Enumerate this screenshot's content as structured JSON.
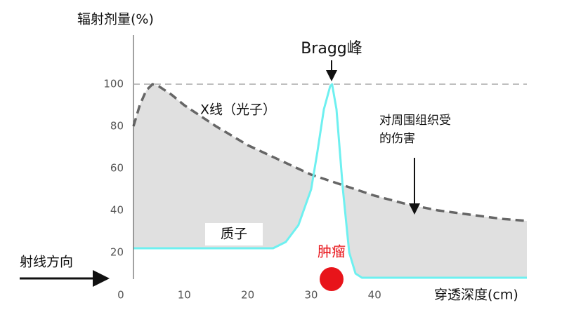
{
  "chart_data": {
    "type": "line",
    "y_label": "辐射剂量(%)",
    "x_label": "穿透深度(cm)",
    "xlim": [
      2,
      64
    ],
    "ylim": [
      0,
      125
    ],
    "xticks": [
      0,
      10,
      20,
      30,
      40
    ],
    "yticks": [
      20,
      40,
      60,
      80,
      100
    ],
    "reference_line": 100,
    "series": [
      {
        "name": "X线（光子）",
        "color": "#666666",
        "fill": "#e0e0e0",
        "dashed": true,
        "x": [
          2,
          3,
          4,
          5,
          6,
          8,
          10,
          15,
          20,
          25,
          30,
          35,
          40,
          45,
          50,
          55,
          60,
          64
        ],
        "values": [
          80,
          90,
          97,
          100,
          99,
          95,
          90,
          80,
          71,
          64,
          57,
          52,
          47,
          43,
          40,
          38,
          36,
          35
        ]
      },
      {
        "name": "质子",
        "color": "#6ef0f0",
        "fill": "#ffffff",
        "dashed": false,
        "x": [
          2,
          24,
          26,
          28,
          30,
          31,
          32,
          33,
          33.3,
          34,
          35,
          36,
          37,
          38,
          64
        ],
        "values": [
          22,
          22,
          25,
          33,
          50,
          68,
          88,
          99,
          100,
          88,
          50,
          20,
          10,
          8,
          8
        ]
      }
    ],
    "annotations": {
      "bragg": "Bragg峰",
      "harm": [
        "对周围组织受",
        "的伤害"
      ],
      "tumor": "肿瘤",
      "direction": "射线方向"
    }
  }
}
